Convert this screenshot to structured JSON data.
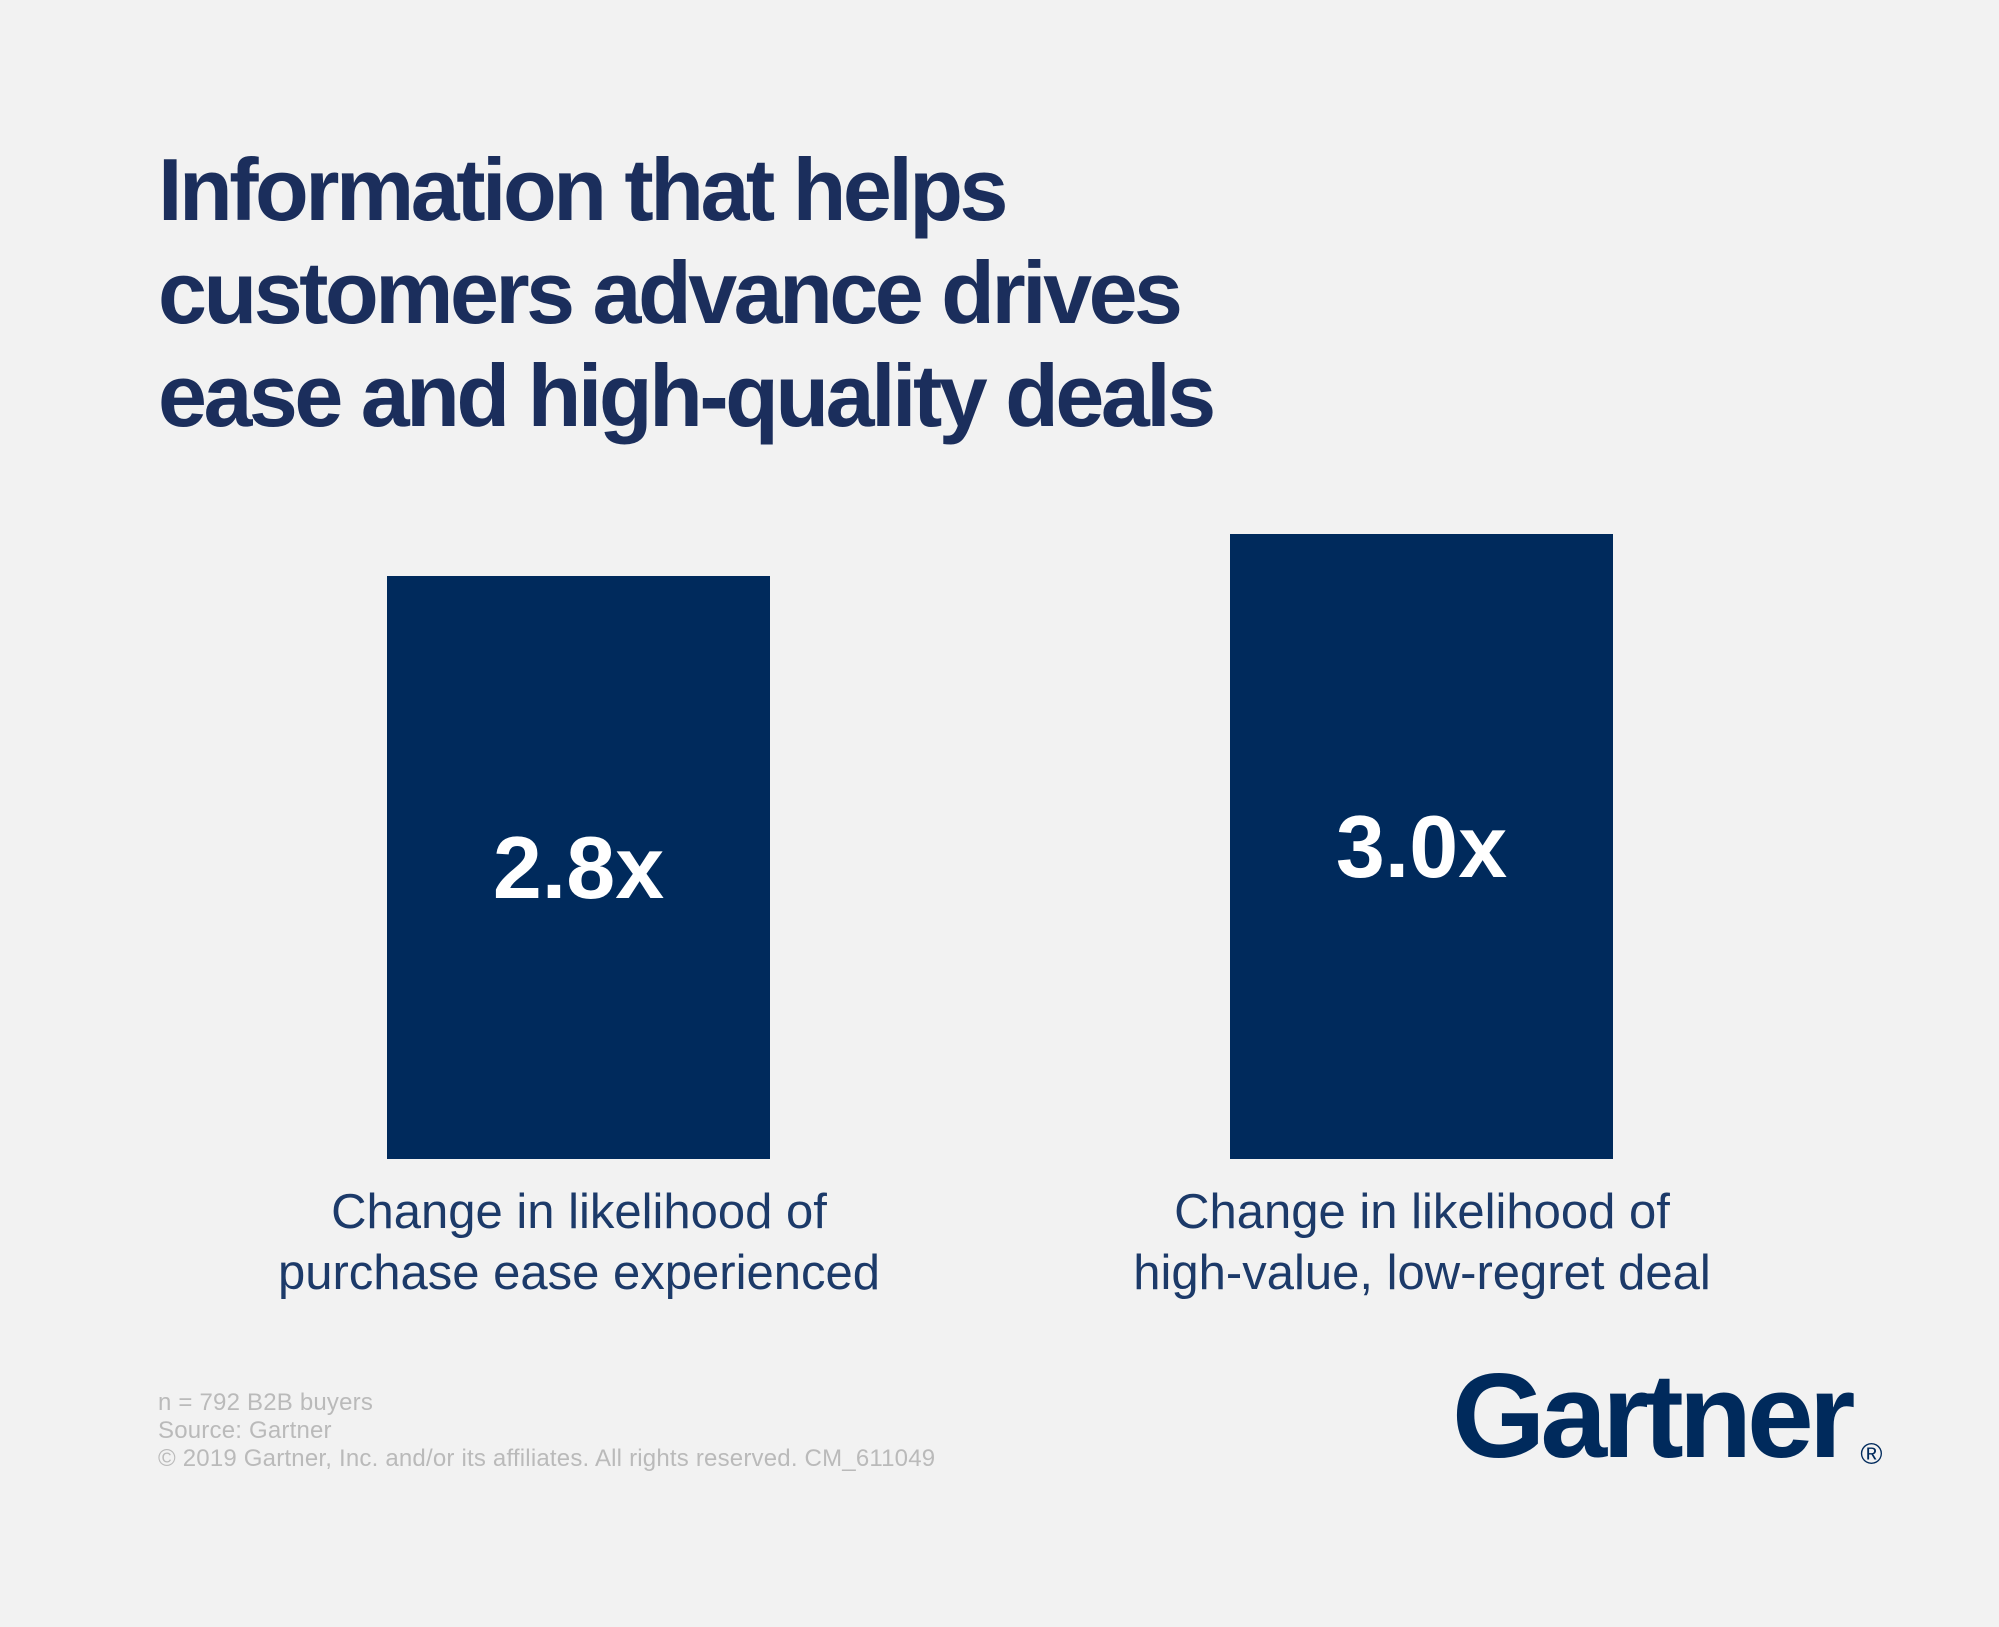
{
  "colors": {
    "background": "#f2f2f2",
    "bar_navy": "#002a5c",
    "title_navy": "#1b2e5c",
    "caption_navy": "#1c3a69",
    "footer_gray": "#bababa",
    "value_white": "#ffffff"
  },
  "title": {
    "lines": [
      "Information that helps",
      "customers advance drives",
      "ease and high-quality deals"
    ]
  },
  "chart_data": {
    "type": "bar",
    "title": "Information that helps customers advance drives ease and high-quality deals",
    "categories": [
      "Change in likelihood of purchase ease experienced",
      "Change in likelihood of high-value, low-regret deal"
    ],
    "values": [
      2.8,
      3.0
    ],
    "value_labels": [
      "2.8x",
      "3.0x"
    ],
    "unit": "x (likelihood multiplier)",
    "ylim": [
      0,
      3.0
    ],
    "grid": false,
    "legend": "none",
    "axes_shown": false,
    "bar_color": "#002a5c",
    "value_label_position": "center-of-bar"
  },
  "bars": [
    {
      "value_label": "2.8x",
      "caption_lines": [
        "Change in likelihood of",
        "purchase ease experienced"
      ]
    },
    {
      "value_label": "3.0x",
      "caption_lines": [
        "Change in likelihood of",
        "high-value, low-regret deal"
      ]
    }
  ],
  "footer": {
    "sample_note": "n = 792 B2B buyers",
    "source": "Source: Gartner",
    "copyright": "© 2019 Gartner, Inc. and/or its affiliates. All rights reserved. CM_611049"
  },
  "logo": {
    "text": "Gartner",
    "registered": "®"
  }
}
